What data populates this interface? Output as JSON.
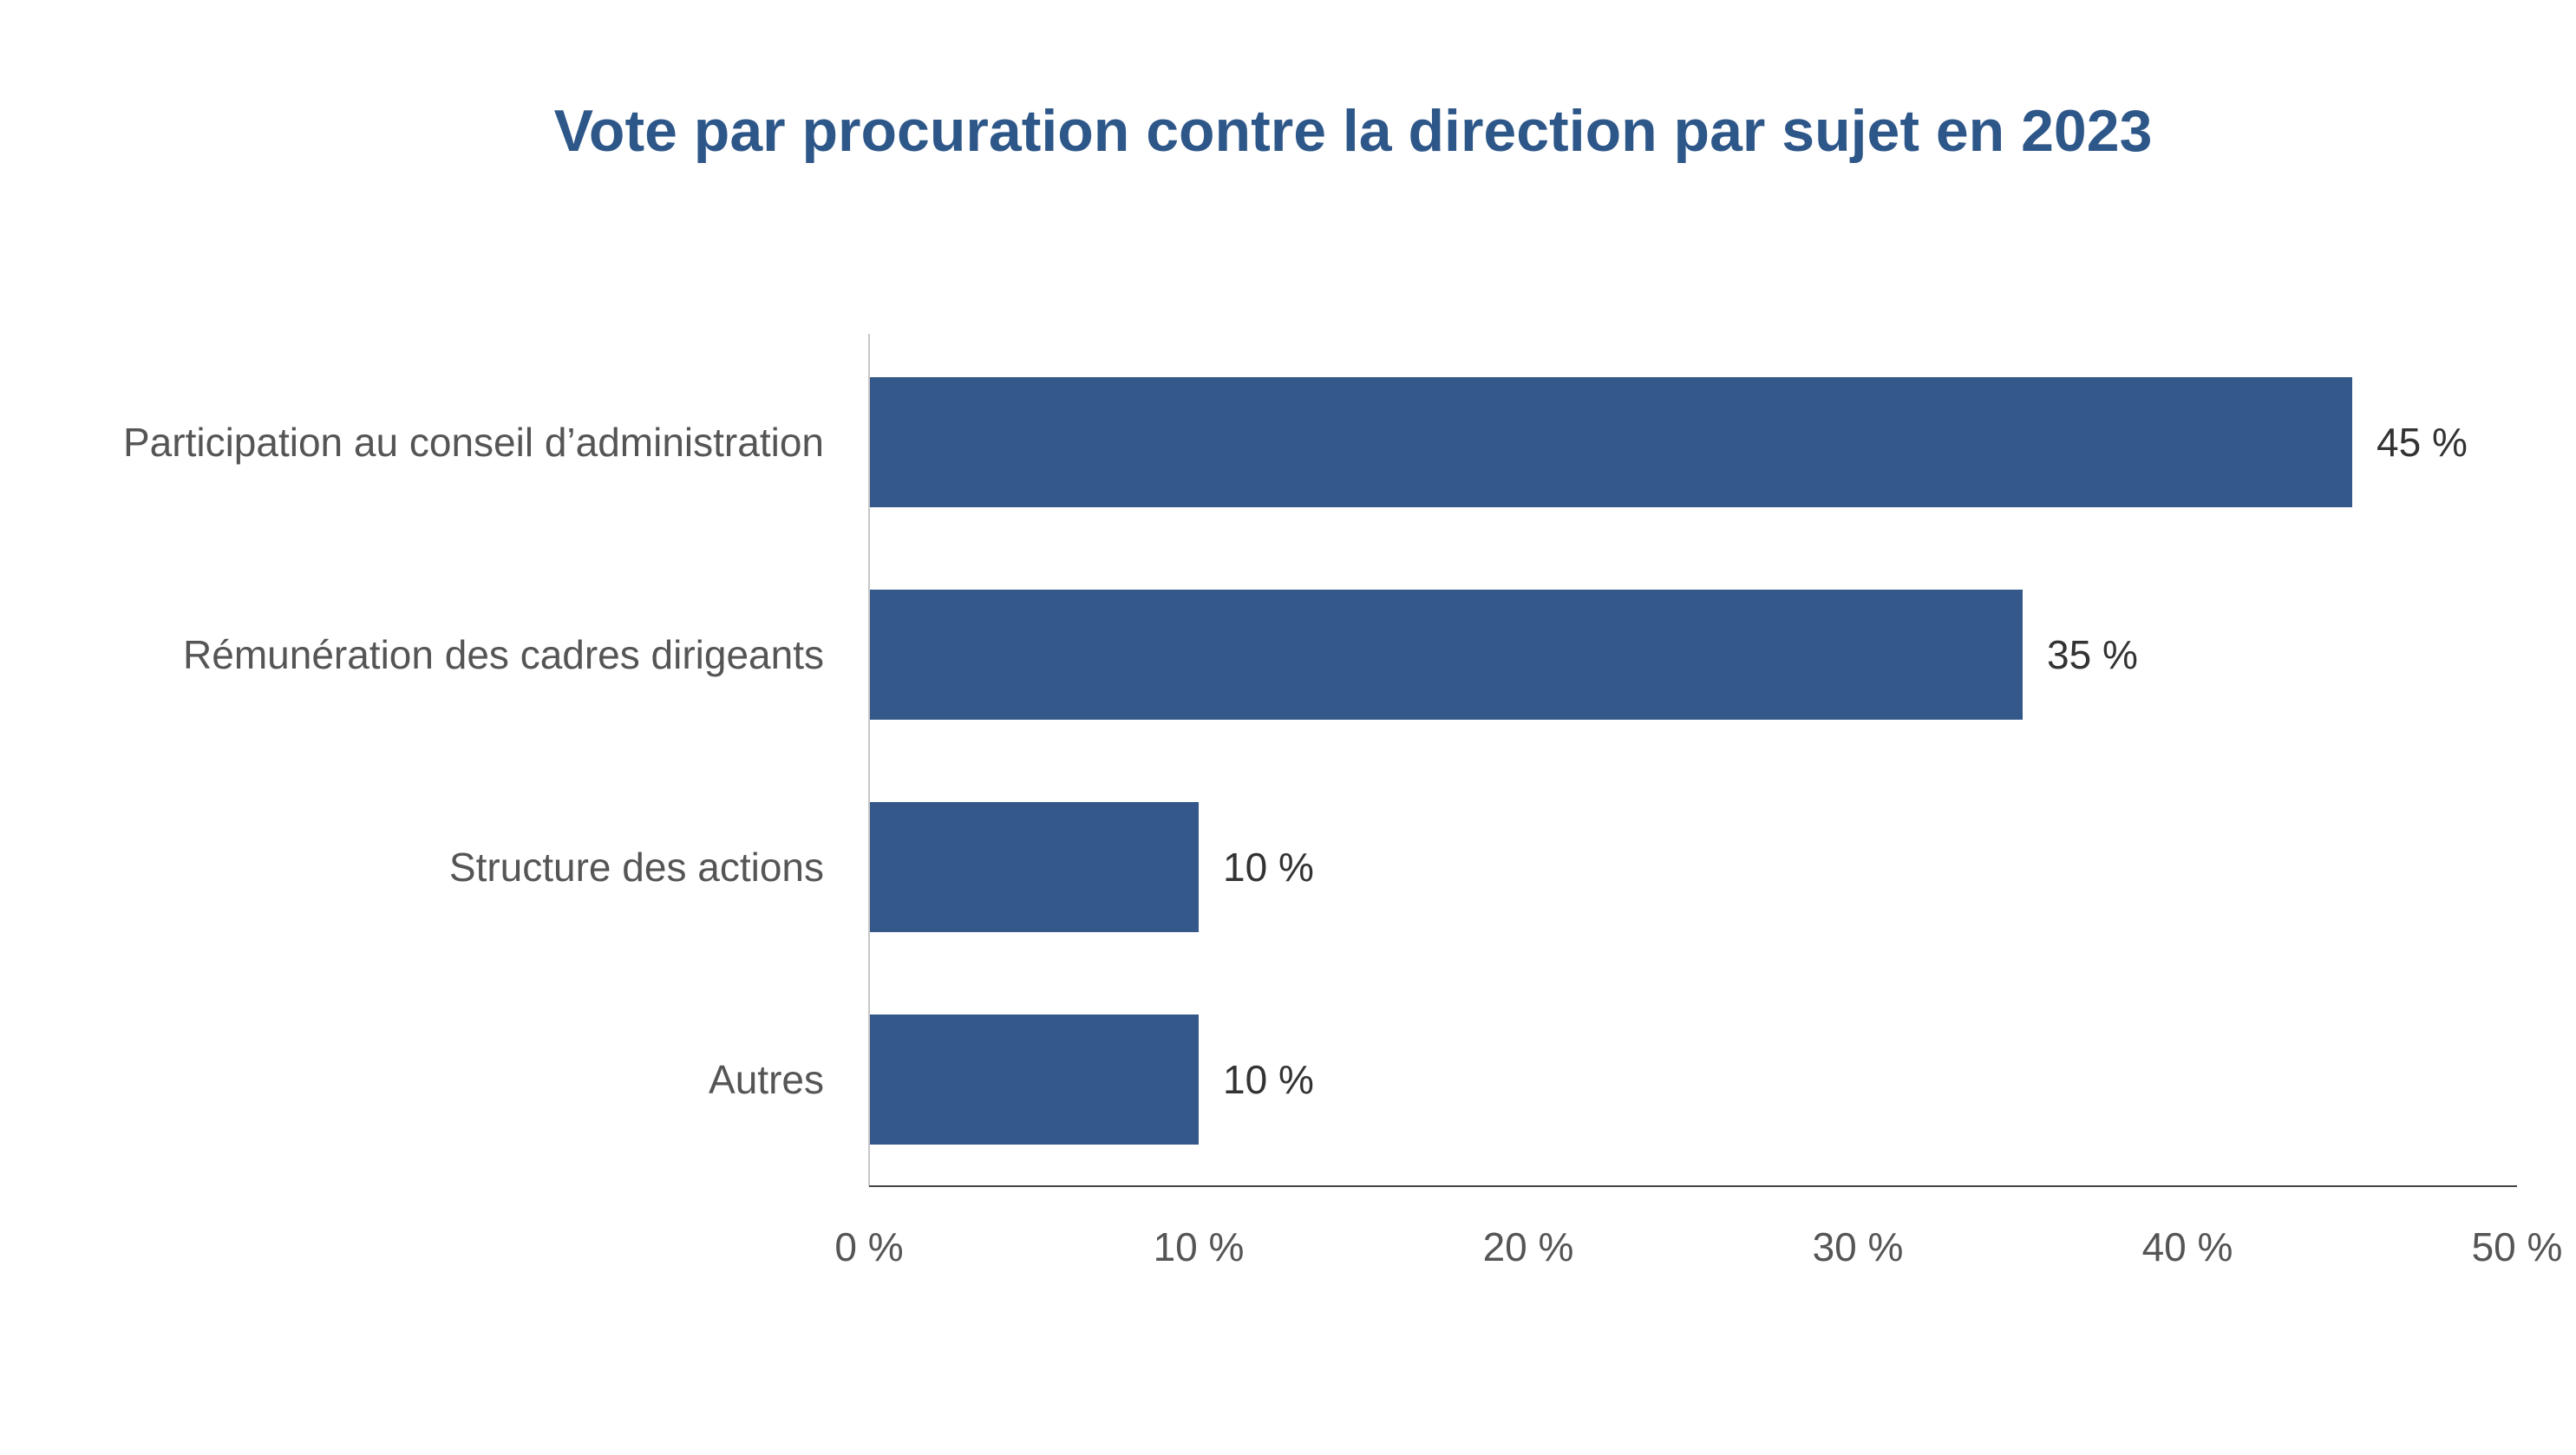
{
  "chart_data": {
    "type": "bar",
    "orientation": "horizontal",
    "title": "Vote par procuration contre la direction par sujet en 2023",
    "categories": [
      "Participation au conseil d’administration",
      "Rémunération des cadres dirigeants",
      "Structure des actions",
      "Autres"
    ],
    "values": [
      45,
      35,
      10,
      10
    ],
    "value_labels": [
      "45 %",
      "35 %",
      "10 %",
      "10 %"
    ],
    "xlim": [
      0,
      50
    ],
    "x_ticks": [
      0,
      10,
      20,
      30,
      40,
      50
    ],
    "x_tick_labels": [
      "0 %",
      "10 %",
      "20 %",
      "30 %",
      "40 %",
      "50 %"
    ],
    "xlabel": "",
    "ylabel": "",
    "grid": false,
    "legend": "none",
    "bar_color": "#34588a",
    "title_color": "#2e5789"
  }
}
